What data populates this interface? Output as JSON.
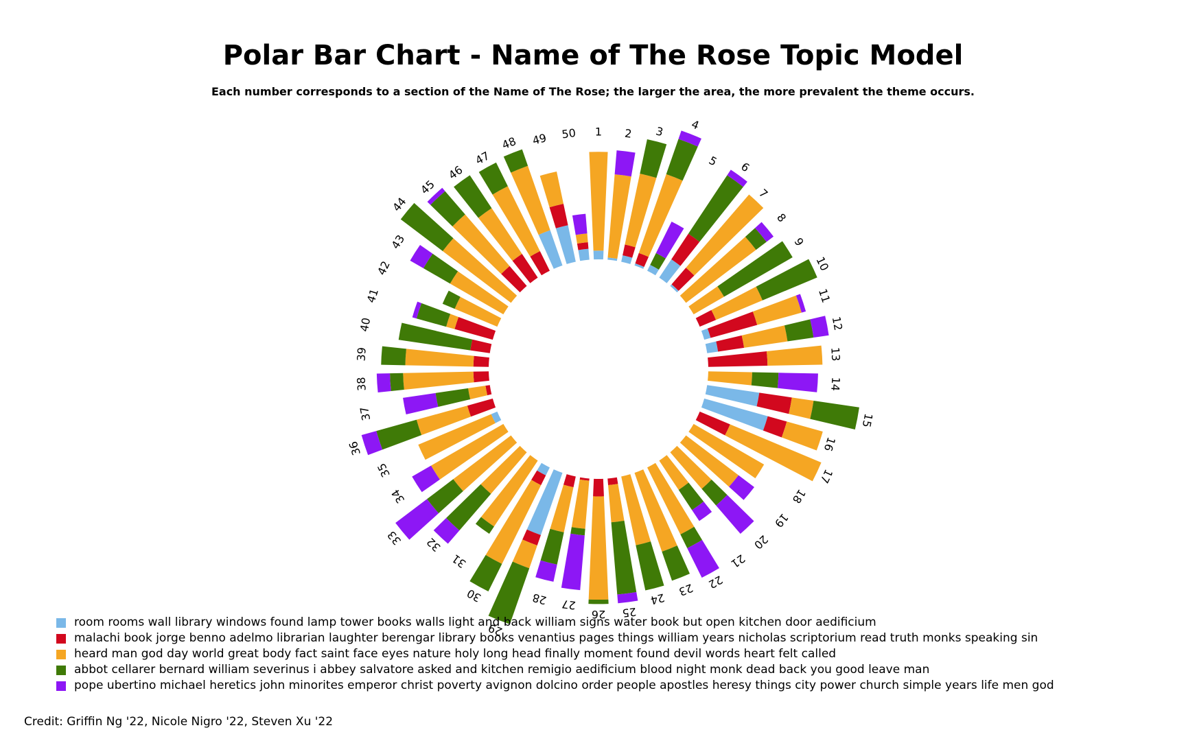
{
  "chart_data": {
    "type": "bar",
    "polar": true,
    "stacked": true,
    "title": "Polar Bar Chart - Name of The Rose Topic Model",
    "subtitle": "Each number corresponds to a section of the Name of The Rose; the larger the area, the more prevalent the theme occurs.",
    "legend_position": "bottom-left",
    "categories": [
      "1",
      "2",
      "3",
      "4",
      "5",
      "6",
      "7",
      "8",
      "9",
      "10",
      "11",
      "12",
      "13",
      "14",
      "15",
      "16",
      "17",
      "18",
      "19",
      "20",
      "21",
      "22",
      "23",
      "24",
      "25",
      "26",
      "27",
      "28",
      "29",
      "30",
      "31",
      "32",
      "33",
      "34",
      "35",
      "36",
      "37",
      "38",
      "39",
      "40",
      "41",
      "42",
      "43",
      "44",
      "45",
      "46",
      "47",
      "48",
      "49",
      "50"
    ],
    "series": [
      {
        "name": "room rooms wall library windows found lamp tower books walls light and back william signs water book but open kitchen door aedificium",
        "color": "#7ab8e8",
        "values": [
          0.04,
          0.01,
          0.03,
          0.01,
          0.03,
          0.1,
          0.01,
          0.0,
          0.0,
          0.0,
          0.03,
          0.05,
          0.0,
          0.0,
          0.24,
          0.3,
          0.0,
          0.0,
          0.0,
          0.0,
          0.0,
          0.0,
          0.0,
          0.0,
          0.0,
          0.0,
          0.0,
          0.0,
          0.3,
          0.04,
          0.0,
          0.0,
          0.0,
          0.0,
          0.03,
          0.0,
          0.0,
          0.0,
          0.0,
          0.0,
          0.0,
          0.0,
          0.0,
          0.0,
          0.0,
          0.0,
          0.0,
          0.17,
          0.17,
          0.05
        ]
      },
      {
        "name": "malachi book jorge benno adelmo librarian laughter berengar library books venantius pages things william years nicholas scriptorium read truth monks speaking sin",
        "color": "#d2081e",
        "values": [
          0.0,
          0.0,
          0.05,
          0.05,
          0.0,
          0.14,
          0.1,
          0.0,
          0.0,
          0.08,
          0.22,
          0.12,
          0.27,
          0.0,
          0.15,
          0.09,
          0.15,
          0.0,
          0.0,
          0.0,
          0.0,
          0.0,
          0.0,
          0.0,
          0.03,
          0.08,
          0.01,
          0.05,
          0.05,
          0.05,
          0.0,
          0.0,
          0.0,
          0.0,
          0.0,
          0.12,
          0.02,
          0.07,
          0.07,
          0.09,
          0.18,
          0.0,
          0.0,
          0.0,
          0.12,
          0.13,
          0.1,
          0.0,
          0.1,
          0.03
        ]
      },
      {
        "name": "heard man god day world great body fact saint face eyes nature holy long head finally moment found devil words heart felt called",
        "color": "#f5a623",
        "values": [
          0.45,
          0.38,
          0.33,
          0.38,
          0.0,
          0.0,
          0.44,
          0.4,
          0.16,
          0.23,
          0.21,
          0.2,
          0.25,
          0.2,
          0.1,
          0.17,
          0.45,
          0.37,
          0.3,
          0.22,
          0.16,
          0.34,
          0.38,
          0.32,
          0.17,
          0.47,
          0.22,
          0.21,
          0.11,
          0.4,
          0.36,
          0.25,
          0.33,
          0.38,
          0.36,
          0.24,
          0.08,
          0.32,
          0.31,
          0.0,
          0.04,
          0.21,
          0.28,
          0.39,
          0.31,
          0.25,
          0.33,
          0.31,
          0.15,
          0.04
        ]
      },
      {
        "name": "abbot cellarer bernard william severinus i abbey salvatore asked and kitchen remigio aedificium blood night monk dead back you good leave man",
        "color": "#3f7a07",
        "values": [
          0.0,
          0.0,
          0.16,
          0.17,
          0.06,
          0.32,
          0.0,
          0.06,
          0.36,
          0.27,
          0.0,
          0.12,
          0.0,
          0.12,
          0.21,
          0.0,
          0.0,
          0.0,
          0.0,
          0.1,
          0.11,
          0.07,
          0.14,
          0.21,
          0.33,
          0.02,
          0.03,
          0.15,
          0.27,
          0.14,
          0.04,
          0.22,
          0.15,
          0.0,
          0.0,
          0.19,
          0.15,
          0.06,
          0.11,
          0.33,
          0.14,
          0.06,
          0.14,
          0.24,
          0.14,
          0.18,
          0.12,
          0.08,
          0.0,
          0.0
        ]
      },
      {
        "name": "pope ubertino michael heretics john minorites emperor christ poverty avignon dolcino order people apostles heresy things city power church simple years life men god",
        "color": "#8d17f5",
        "values": [
          0.0,
          0.11,
          0.0,
          0.04,
          0.16,
          0.03,
          0.0,
          0.04,
          0.0,
          0.0,
          0.02,
          0.07,
          0.0,
          0.18,
          0.0,
          0.0,
          0.0,
          0.0,
          0.09,
          0.17,
          0.06,
          0.15,
          0.0,
          0.0,
          0.04,
          0.0,
          0.25,
          0.08,
          0.0,
          0.0,
          0.0,
          0.08,
          0.18,
          0.1,
          0.0,
          0.07,
          0.15,
          0.06,
          0.0,
          0.0,
          0.02,
          0.0,
          0.07,
          0.0,
          0.02,
          0.0,
          0.0,
          0.0,
          0.0,
          0.09
        ]
      }
    ]
  },
  "credit": "Credit: Griffin Ng '22, Nicole Nigro '22, Steven Xu '22"
}
